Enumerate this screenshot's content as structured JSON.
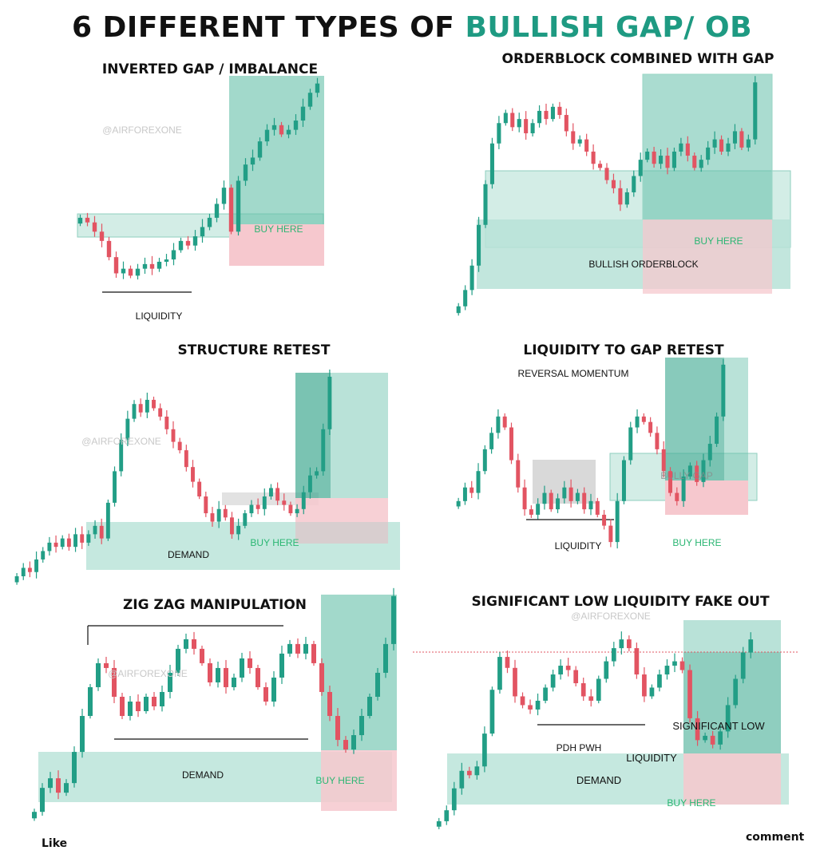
{
  "title": {
    "lead": "6 DIFFERENT TYPES OF",
    "accent": "BULLISH GAP/ OB"
  },
  "footer": {
    "like": "Like",
    "comment": "comment"
  },
  "colors": {
    "bull": "#229e86",
    "bear": "#e25462",
    "zone_teal": "#b7e2d7",
    "zone_teal_dark": "#64bfa9",
    "zone_red": "#f6c8ce",
    "buy_text": "#2bb673",
    "title_accent": "#1e9a82"
  },
  "chart_data": [
    {
      "type": "candlestick",
      "title": "INVERTED GAP / IMBALANCE",
      "watermark": "@AIRFOREXONE",
      "annotations": [
        "BUY HERE",
        "LIQUIDITY"
      ],
      "zones": [
        "bullish gap",
        "target",
        "stop"
      ],
      "series": [
        {
          "values": [
            0.72,
            0.7,
            0.66,
            0.62,
            0.55,
            0.48,
            0.5,
            0.47,
            0.5,
            0.52,
            0.5,
            0.53,
            0.54,
            0.58,
            0.62,
            0.6,
            0.64,
            0.68,
            0.72,
            0.78,
            0.85,
            0.66,
            0.88,
            0.95,
            0.98,
            1.05,
            1.1,
            1.12,
            1.08,
            1.1,
            1.14,
            1.2,
            1.26,
            1.3
          ]
        }
      ]
    },
    {
      "type": "candlestick",
      "title": "ORDERBLOCK COMBINED WITH GAP",
      "annotations": [
        "BUY HERE",
        "BULLISH ORDERBLOCK"
      ],
      "zones": [
        "bullish gap",
        "bullish orderblock",
        "target",
        "stop"
      ],
      "series": [
        {
          "values": [
            0.1,
            0.18,
            0.3,
            0.5,
            0.7,
            0.9,
            1.0,
            1.05,
            0.98,
            1.02,
            0.95,
            1.0,
            1.06,
            1.02,
            1.08,
            1.04,
            0.96,
            0.9,
            0.92,
            0.86,
            0.8,
            0.78,
            0.72,
            0.68,
            0.6,
            0.66,
            0.74,
            0.82,
            0.86,
            0.8,
            0.84,
            0.78,
            0.86,
            0.9,
            0.84,
            0.78,
            0.82,
            0.88,
            0.92,
            0.86,
            0.9,
            0.96,
            0.88,
            0.92,
            1.2
          ]
        }
      ]
    },
    {
      "type": "candlestick",
      "title": "STRUCTURE RETEST",
      "watermark": "@AIRFOREXONE",
      "annotations": [
        "DEMAND",
        "BUY HERE"
      ],
      "zones": [
        "demand",
        "target",
        "stop",
        "retest"
      ],
      "series": [
        {
          "values": [
            0.1,
            0.14,
            0.12,
            0.18,
            0.22,
            0.26,
            0.24,
            0.28,
            0.24,
            0.3,
            0.26,
            0.3,
            0.34,
            0.28,
            0.45,
            0.6,
            0.75,
            0.85,
            0.92,
            0.88,
            0.94,
            0.9,
            0.86,
            0.8,
            0.74,
            0.7,
            0.62,
            0.55,
            0.48,
            0.4,
            0.36,
            0.42,
            0.38,
            0.3,
            0.34,
            0.4,
            0.44,
            0.42,
            0.48,
            0.52,
            0.46,
            0.44,
            0.4,
            0.42,
            0.5,
            0.58,
            0.6,
            0.8,
            1.05
          ]
        }
      ]
    },
    {
      "type": "candlestick",
      "title": "LIQUIDITY TO GAP RETEST",
      "annotations": [
        "REVERSAL MOMENTUM",
        "LIQUIDITY",
        "BULLY GAP",
        "BUY HERE"
      ],
      "zones": [
        "consolidation",
        "bullish gap",
        "target",
        "stop"
      ],
      "series": [
        {
          "values": [
            0.55,
            0.6,
            0.58,
            0.66,
            0.74,
            0.8,
            0.86,
            0.82,
            0.7,
            0.6,
            0.52,
            0.5,
            0.54,
            0.58,
            0.52,
            0.56,
            0.6,
            0.55,
            0.58,
            0.52,
            0.55,
            0.5,
            0.46,
            0.4,
            0.55,
            0.7,
            0.82,
            0.86,
            0.84,
            0.8,
            0.74,
            0.66,
            0.58,
            0.55,
            0.64,
            0.68,
            0.62,
            0.7,
            0.76,
            0.86,
            1.05
          ]
        }
      ]
    },
    {
      "type": "candlestick",
      "title": "ZIG ZAG MANIPULATION",
      "watermark": "@AIRFOREXONE",
      "annotations": [
        "DEMAND",
        "BUY HERE"
      ],
      "zones": [
        "demand",
        "target",
        "stop"
      ],
      "series": [
        {
          "values": [
            0.1,
            0.2,
            0.24,
            0.18,
            0.22,
            0.35,
            0.5,
            0.62,
            0.72,
            0.7,
            0.58,
            0.5,
            0.56,
            0.52,
            0.58,
            0.54,
            0.6,
            0.68,
            0.78,
            0.82,
            0.78,
            0.72,
            0.64,
            0.7,
            0.62,
            0.66,
            0.74,
            0.7,
            0.62,
            0.56,
            0.66,
            0.76,
            0.8,
            0.76,
            0.8,
            0.72,
            0.6,
            0.5,
            0.4,
            0.36,
            0.42,
            0.5,
            0.58,
            0.68,
            0.8,
            1.0
          ]
        }
      ]
    },
    {
      "type": "candlestick",
      "title": "SIGNIFICANT LOW LIQUIDITY FAKE OUT",
      "watermark": "@AIRFOREXONE",
      "annotations": [
        "PDH PWH",
        "SIGNIFICANT LOW",
        "LIQUIDITY",
        "DEMAND",
        "BUY HERE"
      ],
      "zones": [
        "demand",
        "target",
        "stop"
      ],
      "series": [
        {
          "values": [
            0.05,
            0.1,
            0.2,
            0.28,
            0.26,
            0.3,
            0.45,
            0.65,
            0.8,
            0.75,
            0.62,
            0.58,
            0.56,
            0.6,
            0.66,
            0.72,
            0.76,
            0.74,
            0.68,
            0.62,
            0.6,
            0.7,
            0.78,
            0.84,
            0.88,
            0.84,
            0.72,
            0.62,
            0.66,
            0.72,
            0.76,
            0.78,
            0.74,
            0.52,
            0.42,
            0.44,
            0.4,
            0.46,
            0.58,
            0.7,
            0.82,
            0.88
          ]
        }
      ]
    }
  ]
}
